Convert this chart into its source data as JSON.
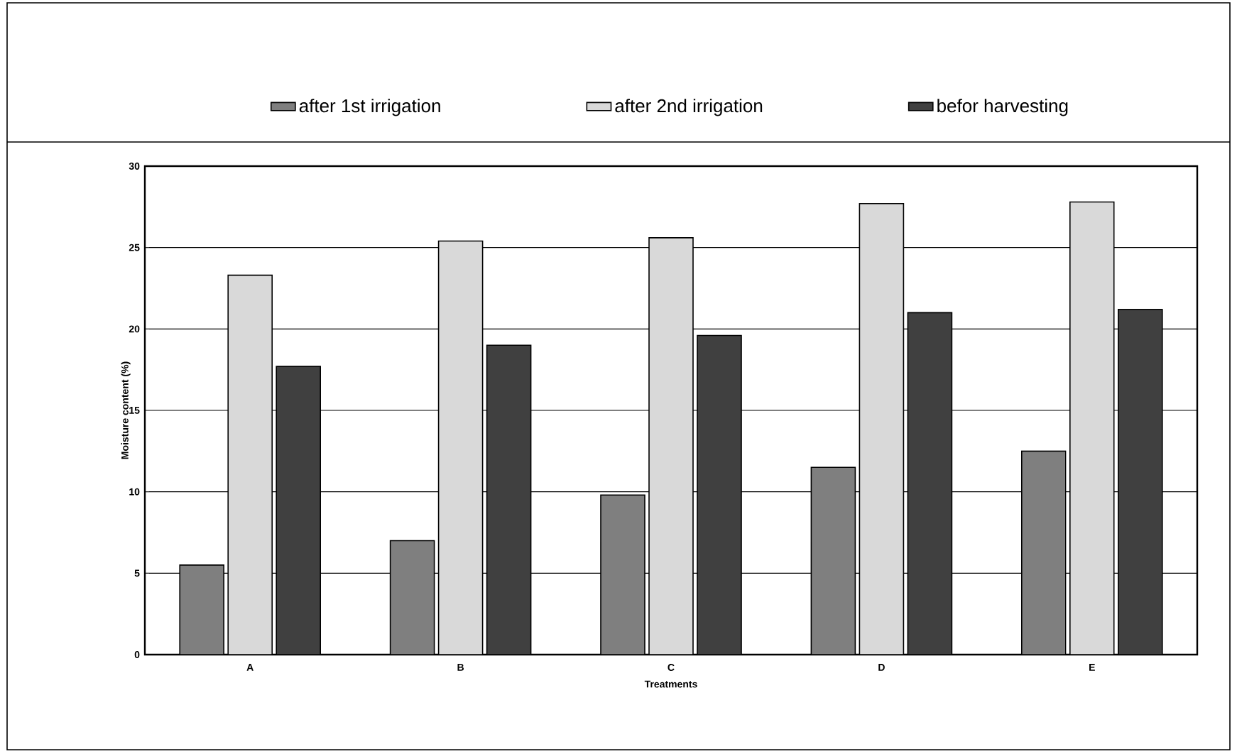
{
  "chart_data": {
    "type": "bar",
    "xlabel": "Treatments",
    "ylabel": "Moisture content (%)",
    "categories": [
      "A",
      "B",
      "C",
      "D",
      "E"
    ],
    "series": [
      {
        "name": "after 1st irrigation",
        "color": "#7f7f7f",
        "values": [
          5.5,
          7.0,
          9.8,
          11.5,
          12.5
        ]
      },
      {
        "name": "after 2nd irrigation",
        "color": "#d9d9d9",
        "values": [
          23.3,
          25.4,
          25.6,
          27.7,
          27.8
        ]
      },
      {
        "name": "befor harvesting",
        "color": "#404040",
        "values": [
          17.7,
          19.0,
          19.6,
          21.0,
          21.2
        ]
      }
    ],
    "ylim": [
      0,
      30
    ],
    "yticks": [
      0,
      5,
      10,
      15,
      20,
      25,
      30
    ],
    "grid": "y",
    "legend": "top"
  }
}
